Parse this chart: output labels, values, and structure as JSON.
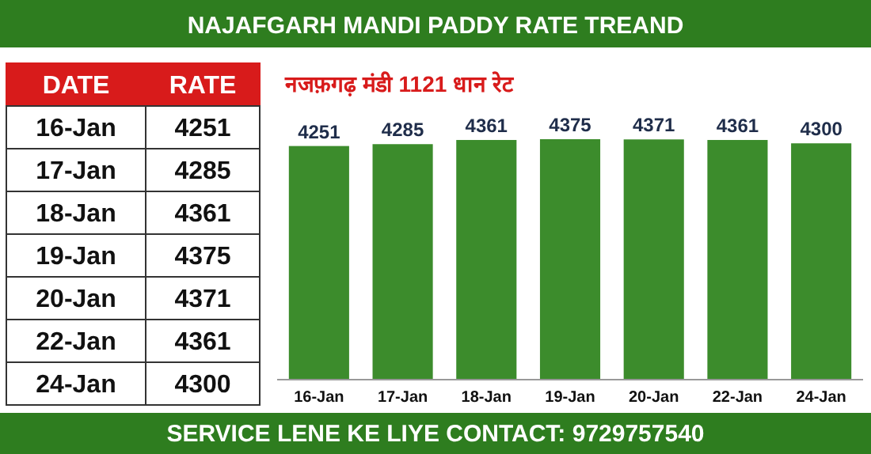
{
  "chart_data": [
    {
      "type": "other",
      "annotations": [
        "DATE",
        "RATE",
        "16-Jan",
        "4251",
        "17-Jan",
        "4285",
        "18-Jan",
        "4361",
        "19-Jan",
        "4375",
        "20-Jan",
        "4371",
        "22-Jan",
        "4361",
        "24-Jan",
        "4300"
      ]
    },
    {
      "type": "bar",
      "title": "NAJAFGARH MANDI PADDY RATE TREAND",
      "subtitle": "नजफ़गढ़ मंडी 1121 धान रेट",
      "categories": [
        "16-Jan",
        "17-Jan",
        "18-Jan",
        "19-Jan",
        "20-Jan",
        "22-Jan",
        "24-Jan"
      ],
      "values": [
        4251,
        4285,
        4361,
        4375,
        4371,
        4361,
        4300
      ],
      "color": "#3c8c2c",
      "data_labels": true,
      "annotations": [
        "SERVICE LENE KE LIYE CONTACT: 9729757540"
      ]
    }
  ]
}
